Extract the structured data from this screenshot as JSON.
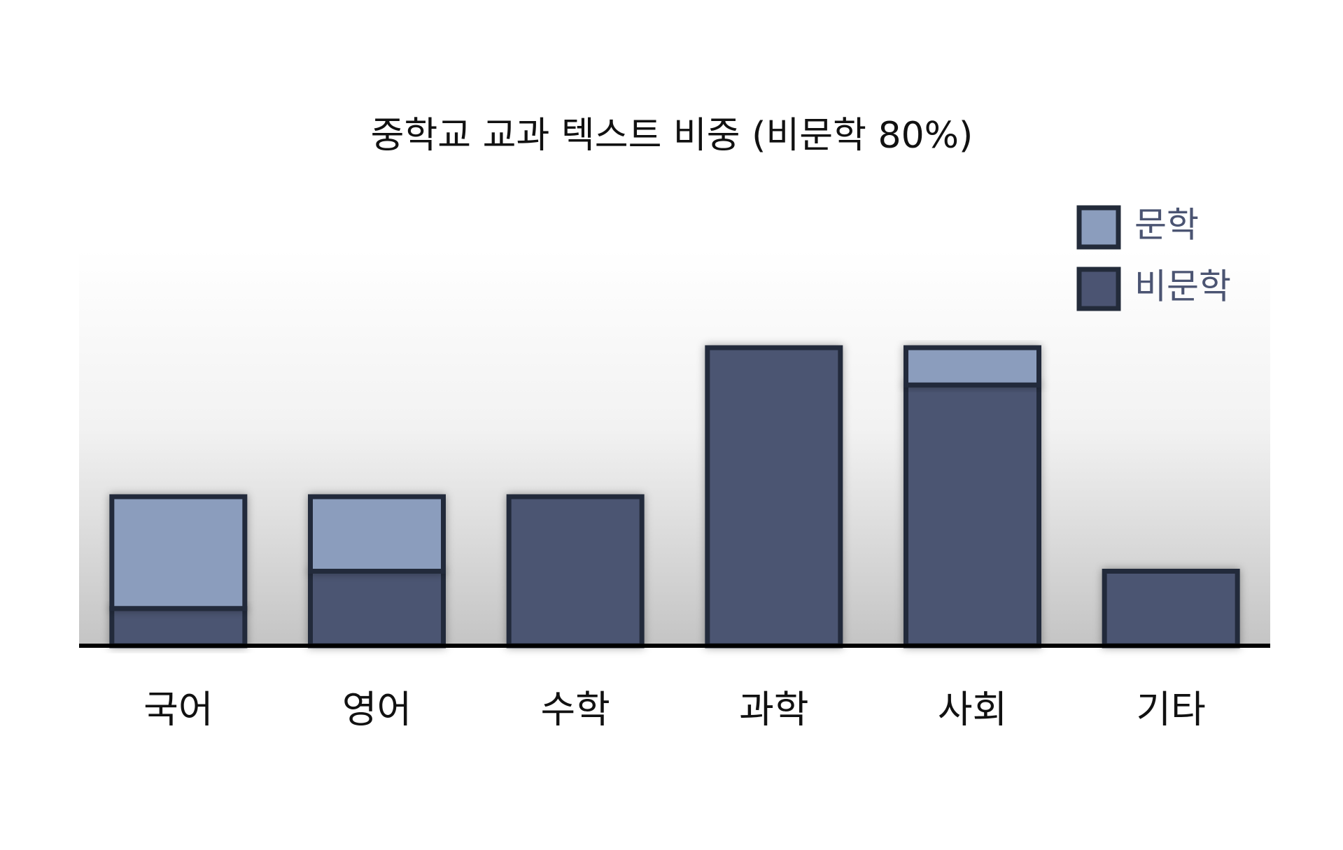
{
  "chart_data": {
    "type": "bar",
    "stacked": true,
    "title": "중학교 교과 텍스트 비중 (비문학 80%)",
    "categories": [
      "국어",
      "영어",
      "수학",
      "과학",
      "사회",
      "기타"
    ],
    "series": [
      {
        "name": "문학",
        "color": "#8b9dbd",
        "values": [
          3,
          2,
          0,
          0,
          1,
          0
        ]
      },
      {
        "name": "비문학",
        "color": "#4b5472",
        "values": [
          1,
          2,
          4,
          8,
          7,
          2
        ]
      }
    ],
    "legend": "top-right"
  }
}
